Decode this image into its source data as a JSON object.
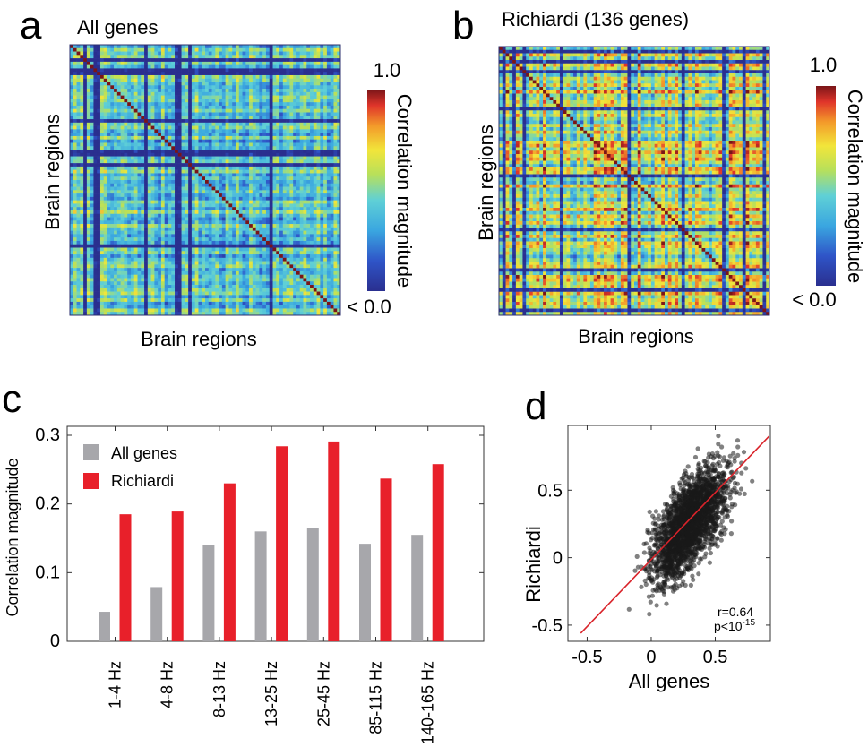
{
  "panels": {
    "a": {
      "label": "a",
      "title": "All genes",
      "xlabel": "Brain regions",
      "ylabel": "Brain regions",
      "colorbar_label": "Correlation magnitude",
      "colorbar_max": "1.0",
      "colorbar_min": "< 0.0"
    },
    "b": {
      "label": "b",
      "title": "Richiardi (136 genes)",
      "xlabel": "Brain regions",
      "ylabel": "Brain regions",
      "colorbar_label": "Correlation magnitude",
      "colorbar_max": "1.0",
      "colorbar_min": "< 0.0"
    },
    "c": {
      "label": "c"
    },
    "d": {
      "label": "d",
      "r_text": "r=0.64",
      "p_text": "p<10",
      "p_exp": "-15"
    }
  },
  "colors": {
    "all_genes": "#a7a7ab",
    "richiardi": "#e8202a",
    "fit_line": "#d9232a",
    "points": "#1a1a1a"
  },
  "chart_data": [
    {
      "panel": "a",
      "type": "heatmap",
      "title": "All genes",
      "xlabel": "Brain regions",
      "ylabel": "Brain regions",
      "color_range": [
        0,
        1
      ],
      "colormap": "jet",
      "note": "region-by-region correlation matrix, values not individually readable"
    },
    {
      "panel": "b",
      "type": "heatmap",
      "title": "Richiardi (136 genes)",
      "xlabel": "Brain regions",
      "ylabel": "Brain regions",
      "color_range": [
        0,
        1
      ],
      "colormap": "jet",
      "note": "region-by-region correlation matrix, values not individually readable"
    },
    {
      "panel": "c",
      "type": "bar",
      "categories": [
        "1-4 Hz",
        "4-8 Hz",
        "8-13 Hz",
        "13-25 Hz",
        "25-45 Hz",
        "85-115 Hz",
        "140-165 Hz"
      ],
      "series": [
        {
          "name": "All genes",
          "values": [
            0.043,
            0.079,
            0.14,
            0.16,
            0.165,
            0.142,
            0.155
          ]
        },
        {
          "name": "Richiardi",
          "values": [
            0.185,
            0.189,
            0.23,
            0.284,
            0.291,
            0.237,
            0.258
          ]
        }
      ],
      "ylabel": "Correlation magnitude",
      "ylim": [
        0,
        0.3
      ],
      "yticks": [
        "0",
        "0.1",
        "0.2",
        "0.3"
      ],
      "legend_position": "top-left",
      "grid": false
    },
    {
      "panel": "d",
      "type": "scatter",
      "xlabel": "All genes",
      "ylabel": "Richiardi",
      "xlim": [
        -0.65,
        0.93
      ],
      "ylim": [
        -0.62,
        0.98
      ],
      "xticks": [
        "-0.5",
        "0",
        "0.5"
      ],
      "yticks": [
        "-0.5",
        "0",
        "0.5"
      ],
      "fit_line": {
        "x": [
          -0.55,
          0.92
        ],
        "y": [
          -0.56,
          0.9
        ]
      },
      "annotation": "r=0.64 p<10^-15",
      "note": "dense point cloud of region-pair correlations"
    }
  ]
}
